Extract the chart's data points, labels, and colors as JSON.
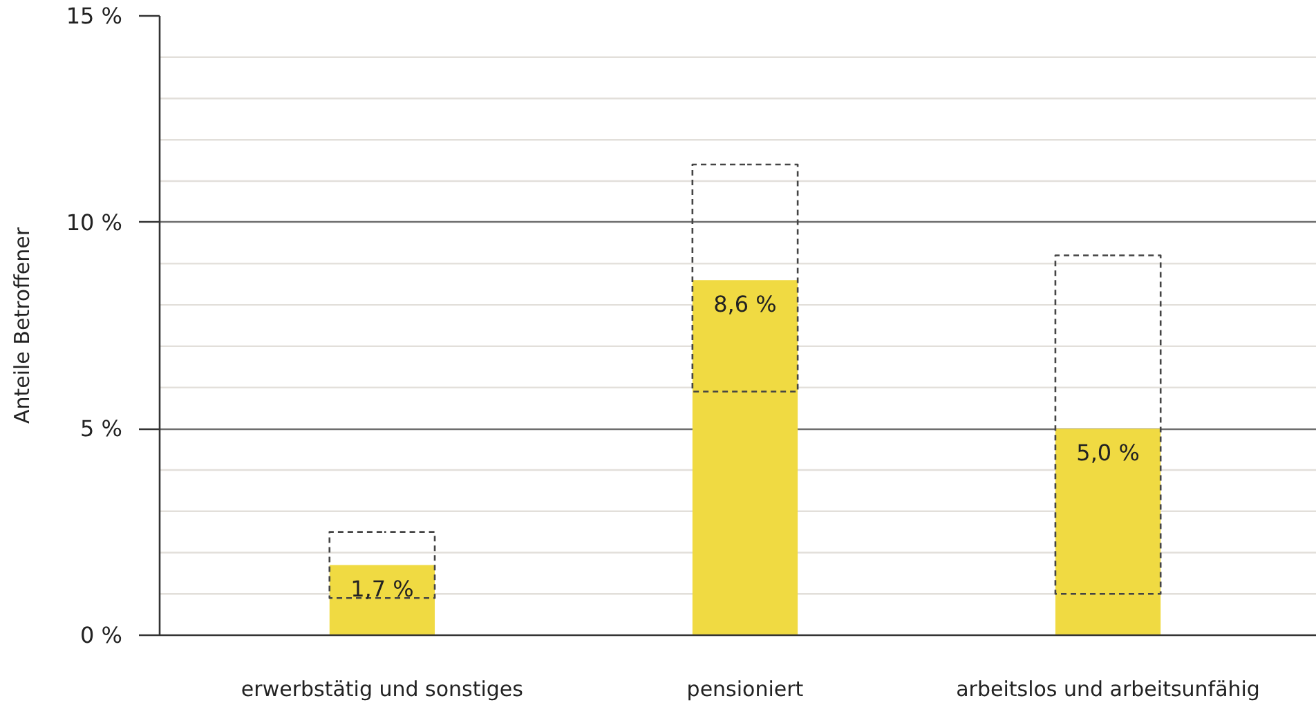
{
  "chart_data": {
    "type": "bar",
    "ylabel": "Anteile Betroffener",
    "categories": [
      "erwerbstätig und sonstiges",
      "pensioniert",
      "arbeitslos und arbeitsunfähig"
    ],
    "values": [
      1.7,
      8.6,
      5.0
    ],
    "color": "#f0da42",
    "errors": [
      [
        0.9,
        2.5
      ],
      [
        5.9,
        11.4
      ],
      [
        1.0,
        9.2
      ]
    ],
    "value_labels": [
      "1,7 %",
      "8,6 %",
      "5,0 %"
    ],
    "ylim": [
      0,
      15
    ],
    "yticks": [
      {
        "value": 0,
        "label": "0 %"
      },
      {
        "value": 1,
        "label": null
      },
      {
        "value": 2,
        "label": null
      },
      {
        "value": 3,
        "label": null
      },
      {
        "value": 4,
        "label": null
      },
      {
        "value": 5,
        "label": "5 %"
      },
      {
        "value": 6,
        "label": null
      },
      {
        "value": 7,
        "label": null
      },
      {
        "value": 8,
        "label": null
      },
      {
        "value": 9,
        "label": null
      },
      {
        "value": 10,
        "label": "10 %"
      },
      {
        "value": 11,
        "label": null
      },
      {
        "value": 12,
        "label": null
      },
      {
        "value": 13,
        "label": null
      },
      {
        "value": 14,
        "label": null
      },
      {
        "value": 15,
        "label": "15 %"
      }
    ],
    "grid": "y"
  }
}
